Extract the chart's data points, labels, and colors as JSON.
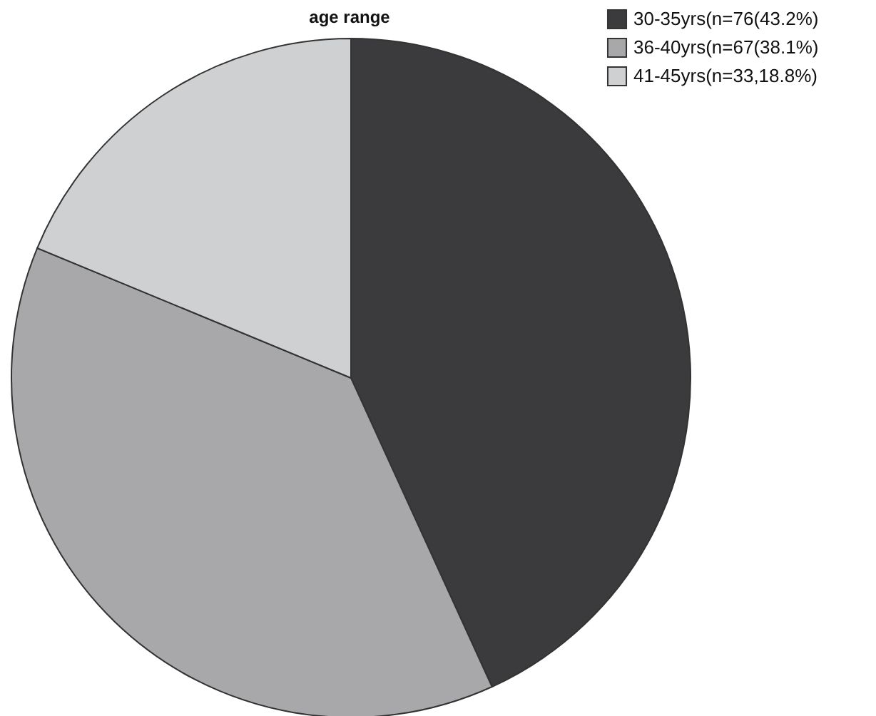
{
  "chart_data": {
    "type": "pie",
    "title": "age range",
    "categories": [
      "30-35yrs(n=76(43.2%)",
      "36-40yrs(n=67(38.1%)",
      "41-45yrs(n=33,18.8%)"
    ],
    "values": [
      76,
      67,
      33
    ],
    "colors": [
      "#3b3b3d",
      "#a8a8aa",
      "#cfd0d2"
    ],
    "legend": "top right"
  }
}
